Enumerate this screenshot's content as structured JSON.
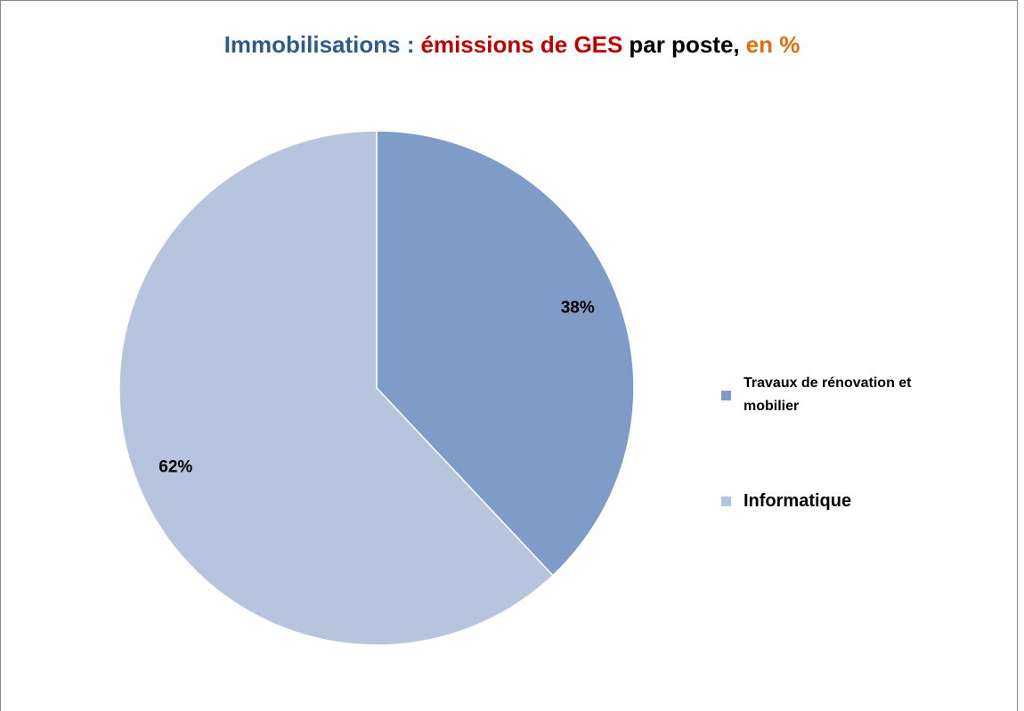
{
  "chart_data": {
    "type": "pie",
    "title": [
      {
        "text": "Immobilisations :",
        "color": "#2e5c8a"
      },
      {
        "text": "émissions de GES",
        "color": "#c00000"
      },
      {
        "text": "par poste,",
        "color": "#000000"
      },
      {
        "text": "en %",
        "color": "#e46c0a"
      }
    ],
    "categories": [
      "Travaux de rénovation et mobilier",
      "Informatique"
    ],
    "values": [
      38,
      62
    ],
    "value_labels": [
      "38%",
      "62%"
    ],
    "colors": [
      "#7f9cc8",
      "#b7c4de"
    ],
    "legend": "right"
  }
}
